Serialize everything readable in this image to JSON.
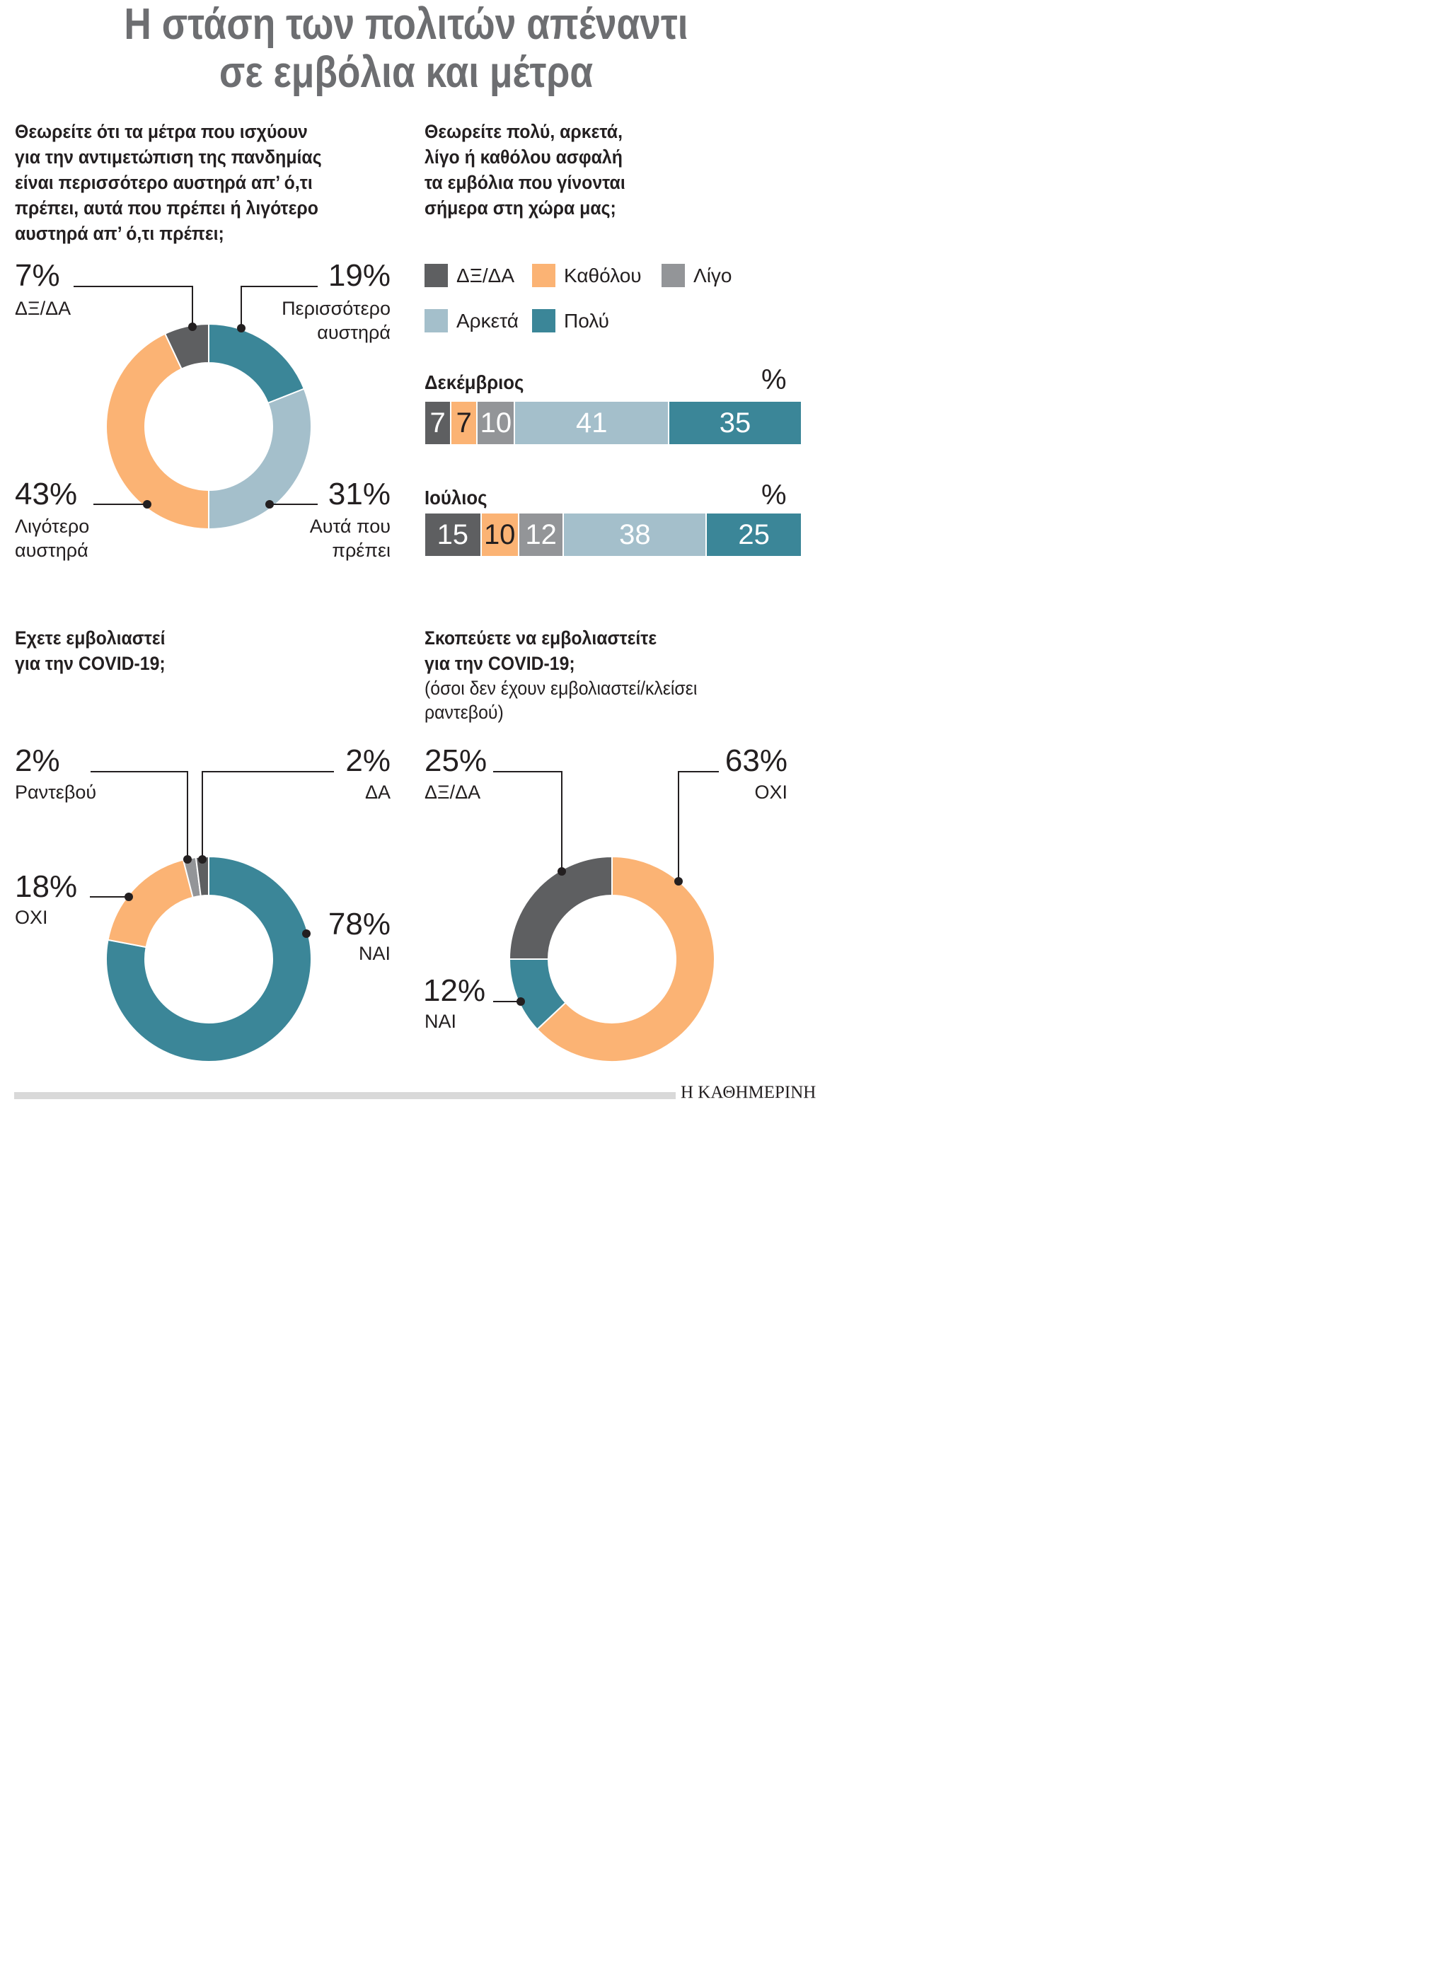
{
  "title": {
    "line1": "Η στάση των πολιτών απέναντι",
    "line2": "σε εμβόλια και μέτρα"
  },
  "colors": {
    "dark": "#5e5f61",
    "orange": "#fbb374",
    "gray": "#939598",
    "light_blue": "#a4bfcb",
    "teal": "#3b8698",
    "title_gray": "#6d6e71"
  },
  "measures": {
    "question": [
      "Θεωρείτε ότι τα μέτρα που ισχύουν",
      "για την αντιμετώπιση της πανδημίας",
      "είναι περισσότερο αυστηρά απ’ ό,τι",
      "πρέπει, αυτά που πρέπει ή λιγότερο",
      "αυστηρά απ’ ό,τι πρέπει;"
    ],
    "labels": {
      "dk": {
        "pct": "7%",
        "text": "ΔΞ/ΔΑ"
      },
      "more": {
        "pct": "19%",
        "text1": "Περισσότερο",
        "text2": "αυστηρά"
      },
      "less": {
        "pct": "43%",
        "text1": "Λιγότερο",
        "text2": "αυστηρά"
      },
      "right": {
        "pct": "31%",
        "text1": "Αυτά που",
        "text2": "πρέπει"
      }
    }
  },
  "safety": {
    "question": [
      "Θεωρείτε πολύ, αρκετά,",
      "λίγο ή καθόλου ασφαλή",
      "τα εμβόλια που γίνονται",
      "σήμερα στη χώρα μας;"
    ],
    "legend": [
      "ΔΞ/ΔΑ",
      "Καθόλου",
      "Λίγο",
      "Αρκετά",
      "Πολύ"
    ],
    "pct_sign": "%",
    "rows": [
      {
        "month": "Δεκέμβριος",
        "values": [
          7,
          7,
          10,
          41,
          35
        ]
      },
      {
        "month": "Ιούλιος",
        "values": [
          15,
          10,
          12,
          38,
          25
        ]
      }
    ]
  },
  "vaccinated": {
    "question": [
      "Εχετε εμβολιαστεί",
      "για την COVID-19;"
    ],
    "labels": {
      "appt": {
        "pct": "2%",
        "text": "Ραντεβού"
      },
      "da": {
        "pct": "2%",
        "text": "ΔΑ"
      },
      "no": {
        "pct": "18%",
        "text": "ΟΧΙ"
      },
      "yes": {
        "pct": "78%",
        "text": "ΝΑΙ"
      }
    }
  },
  "intend": {
    "question": [
      "Σκοπεύετε να εμβολιαστείτε",
      "για την COVID-19;"
    ],
    "sub": [
      "(όσοι δεν έχουν εμβολιαστεί/κλείσει",
      "ραντεβού)"
    ],
    "labels": {
      "dk": {
        "pct": "25%",
        "text": "ΔΞ/ΔΑ"
      },
      "no": {
        "pct": "63%",
        "text": "ΟΧΙ"
      },
      "yes": {
        "pct": "12%",
        "text": "ΝΑΙ"
      }
    }
  },
  "chart_data": [
    {
      "type": "pie",
      "title": "Θεωρείτε ότι τα μέτρα που ισχύουν για την αντιμετώπιση της πανδημίας είναι περισσότερο αυστηρά απ’ ό,τι πρέπει, αυτά που πρέπει ή λιγότερο αυστηρά απ’ ό,τι πρέπει;",
      "donut": true,
      "slices": [
        {
          "label": "Περισσότερο αυστηρά",
          "value": 19,
          "color": "#3b8698"
        },
        {
          "label": "Αυτά που πρέπει",
          "value": 31,
          "color": "#a4bfcb"
        },
        {
          "label": "Λιγότερο αυστηρά",
          "value": 43,
          "color": "#fbb374"
        },
        {
          "label": "ΔΞ/ΔΑ",
          "value": 7,
          "color": "#5e5f61"
        }
      ]
    },
    {
      "type": "bar",
      "stacked": true,
      "orientation": "horizontal",
      "title": "Θεωρείτε πολύ, αρκετά, λίγο ή καθόλου ασφαλή τα εμβόλια που γίνονται σήμερα στη χώρα μας;",
      "categories": [
        "Δεκέμβριος",
        "Ιούλιος"
      ],
      "unit": "%",
      "legend_position": "top",
      "series": [
        {
          "name": "ΔΞ/ΔΑ",
          "values": [
            7,
            15
          ],
          "color": "#5e5f61"
        },
        {
          "name": "Καθόλου",
          "values": [
            7,
            10
          ],
          "color": "#fbb374"
        },
        {
          "name": "Λίγο",
          "values": [
            10,
            12
          ],
          "color": "#939598"
        },
        {
          "name": "Αρκετά",
          "values": [
            41,
            38
          ],
          "color": "#a4bfcb"
        },
        {
          "name": "Πολύ",
          "values": [
            35,
            25
          ],
          "color": "#3b8698"
        }
      ]
    },
    {
      "type": "pie",
      "title": "Εχετε εμβολιαστεί για την COVID-19;",
      "donut": true,
      "slices": [
        {
          "label": "ΝΑΙ",
          "value": 78,
          "color": "#3b8698"
        },
        {
          "label": "ΟΧΙ",
          "value": 18,
          "color": "#fbb374"
        },
        {
          "label": "Ραντεβού",
          "value": 2,
          "color": "#939598"
        },
        {
          "label": "ΔΑ",
          "value": 2,
          "color": "#5e5f61"
        }
      ]
    },
    {
      "type": "pie",
      "title": "Σκοπεύετε να εμβολιαστείτε για την COVID-19; (όσοι δεν έχουν εμβολιαστεί/κλείσει ραντεβού)",
      "donut": true,
      "slices": [
        {
          "label": "ΟΧΙ",
          "value": 63,
          "color": "#fbb374"
        },
        {
          "label": "ΝΑΙ",
          "value": 12,
          "color": "#3b8698"
        },
        {
          "label": "ΔΞ/ΔΑ",
          "value": 25,
          "color": "#5e5f61"
        }
      ]
    }
  ],
  "footer": {
    "brand": "Η ΚΑΘΗΜΕΡΙΝΗ"
  }
}
